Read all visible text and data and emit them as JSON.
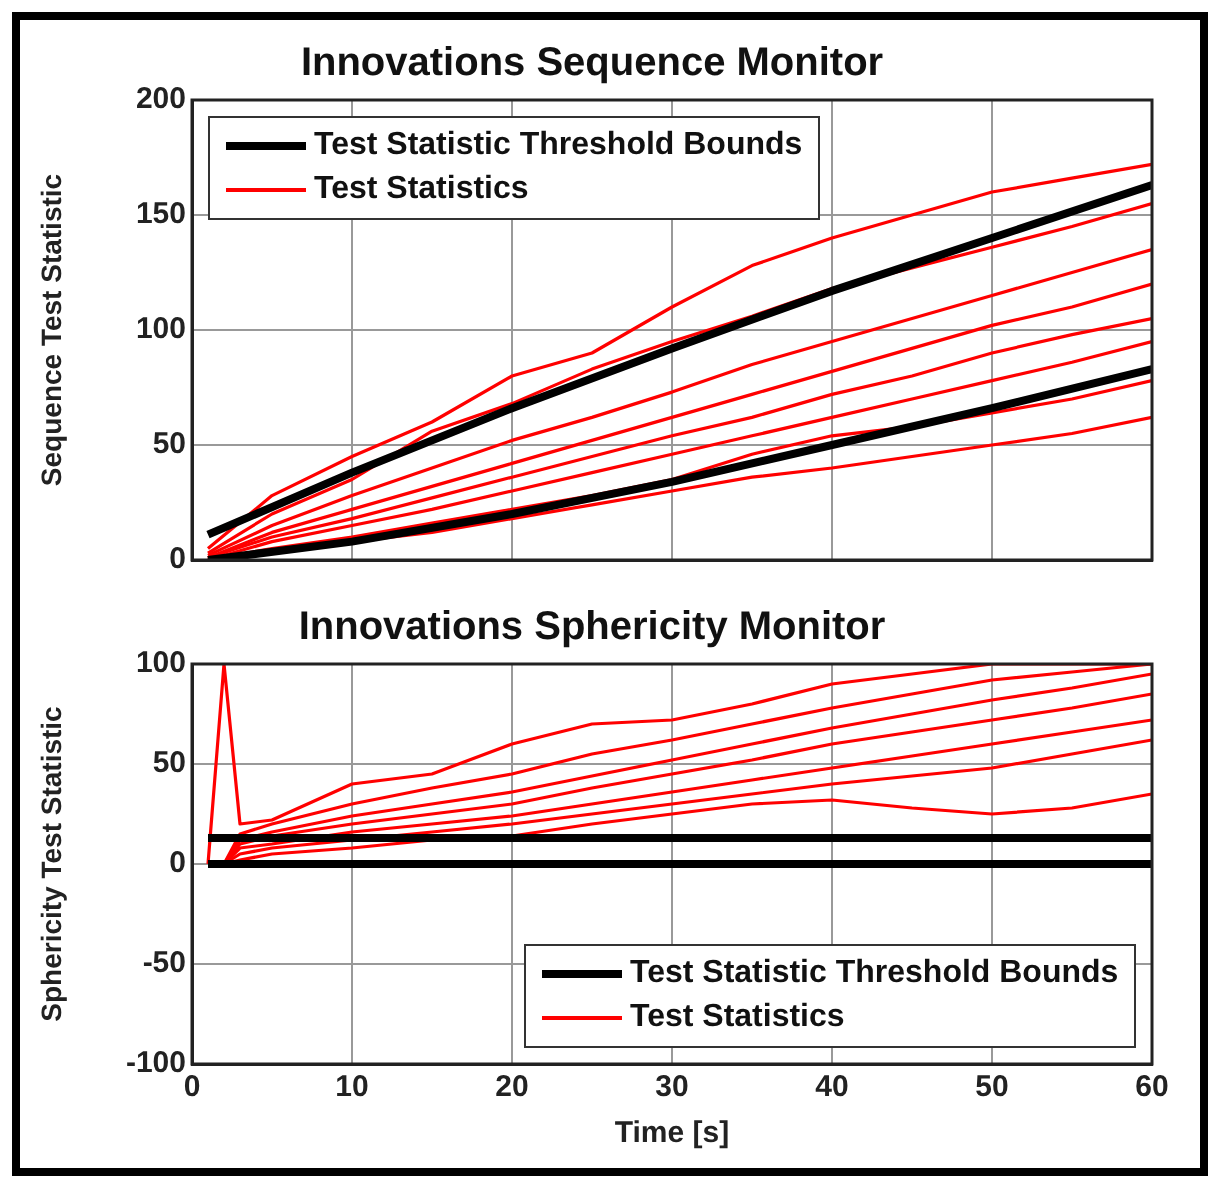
{
  "chart_data": [
    {
      "type": "line",
      "title": "Innovations Sequence Monitor",
      "ylabel": "Sequence Test Statistic",
      "xlim": [
        0,
        60
      ],
      "xticks": [
        0,
        10,
        20,
        30,
        40,
        50,
        60
      ],
      "ylim": [
        0,
        200
      ],
      "yticks": [
        0,
        50,
        100,
        150,
        200
      ],
      "grid": true,
      "legend": "top left",
      "tick_labels": "y",
      "marker": "none",
      "line_style": "solid",
      "series": [
        {
          "name": "Test Statistic Threshold Bounds",
          "color": "#000000",
          "x": [
            1,
            10,
            20,
            30,
            40,
            50,
            60
          ],
          "values": [
            11,
            38,
            66,
            92,
            117,
            140,
            163
          ]
        },
        {
          "color": "#000000",
          "x": [
            1,
            10,
            20,
            30,
            40,
            50,
            60
          ],
          "values": [
            0,
            8,
            20,
            34,
            50,
            66,
            83
          ]
        },
        {
          "name": "Test Statistics",
          "color": "#ff0000",
          "x": [
            1,
            5,
            10,
            15,
            20,
            25,
            30,
            35,
            40,
            45,
            50,
            55,
            60
          ],
          "values": [
            5,
            28,
            45,
            60,
            80,
            90,
            110,
            128,
            140,
            150,
            160,
            166,
            172
          ]
        },
        {
          "color": "#ff0000",
          "x": [
            1,
            5,
            10,
            15,
            20,
            25,
            30,
            35,
            40,
            45,
            50,
            55,
            60
          ],
          "values": [
            3,
            20,
            35,
            56,
            68,
            83,
            95,
            106,
            118,
            127,
            136,
            145,
            155
          ]
        },
        {
          "color": "#ff0000",
          "x": [
            1,
            5,
            10,
            15,
            20,
            25,
            30,
            35,
            40,
            45,
            50,
            55,
            60
          ],
          "values": [
            2,
            15,
            28,
            40,
            52,
            62,
            73,
            85,
            95,
            105,
            115,
            125,
            135
          ]
        },
        {
          "color": "#ff0000",
          "x": [
            1,
            5,
            10,
            15,
            20,
            25,
            30,
            35,
            40,
            45,
            50,
            55,
            60
          ],
          "values": [
            1,
            12,
            22,
            32,
            42,
            52,
            62,
            72,
            82,
            92,
            102,
            110,
            120
          ]
        },
        {
          "color": "#ff0000",
          "x": [
            1,
            5,
            10,
            15,
            20,
            25,
            30,
            35,
            40,
            45,
            50,
            55,
            60
          ],
          "values": [
            1,
            10,
            18,
            27,
            36,
            45,
            54,
            62,
            72,
            80,
            90,
            98,
            105
          ]
        },
        {
          "color": "#ff0000",
          "x": [
            1,
            5,
            10,
            15,
            20,
            25,
            30,
            35,
            40,
            45,
            50,
            55,
            60
          ],
          "values": [
            0,
            8,
            15,
            22,
            30,
            38,
            46,
            54,
            62,
            70,
            78,
            86,
            95
          ]
        },
        {
          "color": "#ff0000",
          "x": [
            1,
            5,
            10,
            15,
            20,
            25,
            30,
            35,
            40,
            45,
            50,
            55,
            60
          ],
          "values": [
            0,
            5,
            10,
            16,
            22,
            28,
            35,
            46,
            54,
            58,
            64,
            70,
            78
          ]
        },
        {
          "color": "#ff0000",
          "x": [
            1,
            5,
            10,
            15,
            20,
            25,
            30,
            35,
            40,
            45,
            50,
            55,
            60
          ],
          "values": [
            0,
            4,
            8,
            12,
            18,
            24,
            30,
            36,
            40,
            45,
            50,
            55,
            62
          ]
        }
      ]
    },
    {
      "type": "line",
      "title": "Innovations Sphericity Monitor",
      "xlabel": "Time [s]",
      "ylabel": "Sphericity Test Statistic",
      "xlim": [
        0,
        60
      ],
      "xticks": [
        0,
        10,
        20,
        30,
        40,
        50,
        60
      ],
      "ylim": [
        -100,
        100
      ],
      "yticks": [
        -100,
        -50,
        0,
        50,
        100
      ],
      "grid": true,
      "legend": "bottom right",
      "marker": "none",
      "line_style": "solid",
      "series": [
        {
          "name": "Test Statistic Threshold Bounds",
          "color": "#000000",
          "x": [
            1,
            60
          ],
          "values": [
            13,
            13
          ]
        },
        {
          "color": "#000000",
          "x": [
            1,
            60
          ],
          "values": [
            0,
            0
          ]
        },
        {
          "name": "Test Statistics",
          "color": "#ff0000",
          "x": [
            1,
            2,
            3,
            5,
            10,
            15,
            20,
            25,
            30,
            35,
            40,
            45,
            50,
            55,
            60
          ],
          "values": [
            0,
            100,
            20,
            22,
            40,
            45,
            60,
            70,
            72,
            80,
            90,
            95,
            100,
            100,
            100
          ]
        },
        {
          "color": "#ff0000",
          "x": [
            1,
            2,
            3,
            5,
            10,
            15,
            20,
            25,
            30,
            35,
            40,
            45,
            50,
            55,
            60
          ],
          "values": [
            0,
            0,
            15,
            20,
            30,
            38,
            45,
            55,
            62,
            70,
            78,
            85,
            92,
            96,
            100
          ]
        },
        {
          "color": "#ff0000",
          "x": [
            1,
            2,
            3,
            5,
            10,
            15,
            20,
            25,
            30,
            35,
            40,
            45,
            50,
            55,
            60
          ],
          "values": [
            0,
            0,
            12,
            16,
            24,
            30,
            36,
            44,
            52,
            60,
            68,
            75,
            82,
            88,
            95
          ]
        },
        {
          "color": "#ff0000",
          "x": [
            1,
            2,
            3,
            5,
            10,
            15,
            20,
            25,
            30,
            35,
            40,
            45,
            50,
            55,
            60
          ],
          "values": [
            0,
            0,
            10,
            14,
            20,
            25,
            30,
            38,
            45,
            52,
            60,
            66,
            72,
            78,
            85
          ]
        },
        {
          "color": "#ff0000",
          "x": [
            1,
            2,
            3,
            5,
            10,
            15,
            20,
            25,
            30,
            35,
            40,
            45,
            50,
            55,
            60
          ],
          "values": [
            0,
            0,
            8,
            10,
            16,
            20,
            24,
            30,
            36,
            42,
            48,
            54,
            60,
            66,
            72
          ]
        },
        {
          "color": "#ff0000",
          "x": [
            1,
            2,
            3,
            5,
            10,
            15,
            20,
            25,
            30,
            35,
            40,
            45,
            50,
            55,
            60
          ],
          "values": [
            0,
            0,
            5,
            8,
            12,
            16,
            20,
            25,
            30,
            35,
            40,
            44,
            48,
            55,
            62
          ]
        },
        {
          "color": "#ff0000",
          "x": [
            1,
            2,
            3,
            5,
            10,
            15,
            20,
            25,
            30,
            35,
            40,
            45,
            50,
            55,
            60
          ],
          "values": [
            0,
            0,
            2,
            5,
            8,
            12,
            14,
            20,
            25,
            30,
            32,
            28,
            25,
            28,
            35
          ]
        }
      ]
    }
  ]
}
